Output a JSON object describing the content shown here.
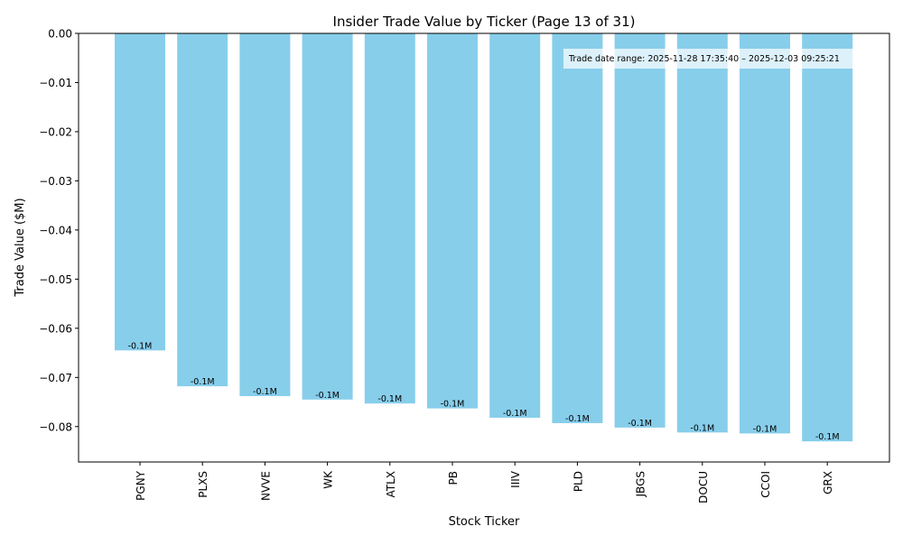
{
  "chart_data": {
    "type": "bar",
    "title": "Insider Trade Value by Ticker (Page 13 of 31)",
    "xlabel": "Stock Ticker",
    "ylabel": "Trade Value ($M)",
    "categories": [
      "PGNY",
      "PLXS",
      "NVVE",
      "WK",
      "ATLX",
      "PB",
      "IIIV",
      "PLD",
      "JBGS",
      "DOCU",
      "CCOI",
      "GRX"
    ],
    "values": [
      -0.0645,
      -0.0718,
      -0.0738,
      -0.0745,
      -0.0753,
      -0.0763,
      -0.0782,
      -0.0793,
      -0.0802,
      -0.0812,
      -0.0814,
      -0.083
    ],
    "data_labels": [
      "-0.1M",
      "-0.1M",
      "-0.1M",
      "-0.1M",
      "-0.1M",
      "-0.1M",
      "-0.1M",
      "-0.1M",
      "-0.1M",
      "-0.1M",
      "-0.1M",
      "-0.1M"
    ],
    "ylim": [
      -0.0872,
      0.0
    ],
    "yticks": [
      0.0,
      -0.01,
      -0.02,
      -0.03,
      -0.04,
      -0.05,
      -0.06,
      -0.07,
      -0.08
    ],
    "ytick_labels": [
      "0.00",
      "−0.01",
      "−0.02",
      "−0.03",
      "−0.04",
      "−0.05",
      "−0.06",
      "−0.07",
      "−0.08"
    ],
    "grid": false,
    "annotation": "Trade date range: 2025-11-28 17:35:40 – 2025-12-03 09:25:21",
    "bar_color": "#87ceeb"
  }
}
